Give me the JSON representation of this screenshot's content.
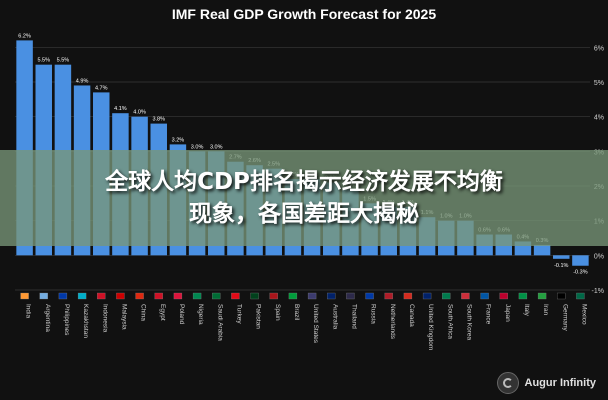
{
  "chart_data": {
    "type": "bar",
    "title": "IMF Real GDP Growth Forecast for 2025",
    "categories": [
      "India",
      "Argentina",
      "Philippines",
      "Kazakhstan",
      "Indonesia",
      "Malaysia",
      "China",
      "Egypt",
      "Poland",
      "Nigeria",
      "Saudi Arabia",
      "Turkey",
      "Pakistan",
      "Spain",
      "Brazil",
      "United States",
      "Australia",
      "Thailand",
      "Russia",
      "Netherlands",
      "Canada",
      "United Kingdom",
      "South Africa",
      "South Korea",
      "France",
      "Japan",
      "Italy",
      "Iran",
      "Germany",
      "Mexico"
    ],
    "values": [
      6.2,
      5.5,
      5.5,
      4.9,
      4.7,
      4.1,
      4.0,
      3.8,
      3.2,
      3.0,
      3.0,
      2.7,
      2.6,
      2.5,
      2.2,
      2.2,
      2.1,
      1.9,
      1.5,
      1.4,
      1.4,
      1.1,
      1.0,
      1.0,
      0.6,
      0.6,
      0.4,
      0.3,
      -0.1,
      -0.3
    ],
    "value_labels": [
      "6.2%",
      "5.5%",
      "5.5%",
      "4.9%",
      "4.7%",
      "4.1%",
      "4.0%",
      "3.8%",
      "3.2%",
      "3.0%",
      "3.0%",
      "2.7%",
      "2.6%",
      "2.5%",
      "2.2%",
      "2.2%",
      "2.1%",
      "1.9%",
      "1.5%",
      "1.4%",
      "1.4%",
      "1.1%",
      "1.0%",
      "1.0%",
      "0.6%",
      "0.6%",
      "0.4%",
      "0.3%",
      "-0.1%",
      "-0.3%"
    ],
    "yticks": [
      "-1%",
      "0%",
      "1%",
      "2%",
      "3%",
      "4%",
      "5%",
      "6%"
    ],
    "ylim": [
      -1,
      6.5
    ],
    "grid": true,
    "colors": {
      "bar": "#4a90e2",
      "background": "#111111",
      "grid": "#3a3a3a",
      "text": "#ffffff",
      "axis_text": "#d0d0d0"
    }
  },
  "banner": {
    "line1": "全球人均CDP排名揭示经济发展不均衡",
    "line2": "现象，各国差距大揭秘"
  },
  "watermark": {
    "text": "Augur Infinity",
    "icon": "augur-logo-icon"
  }
}
